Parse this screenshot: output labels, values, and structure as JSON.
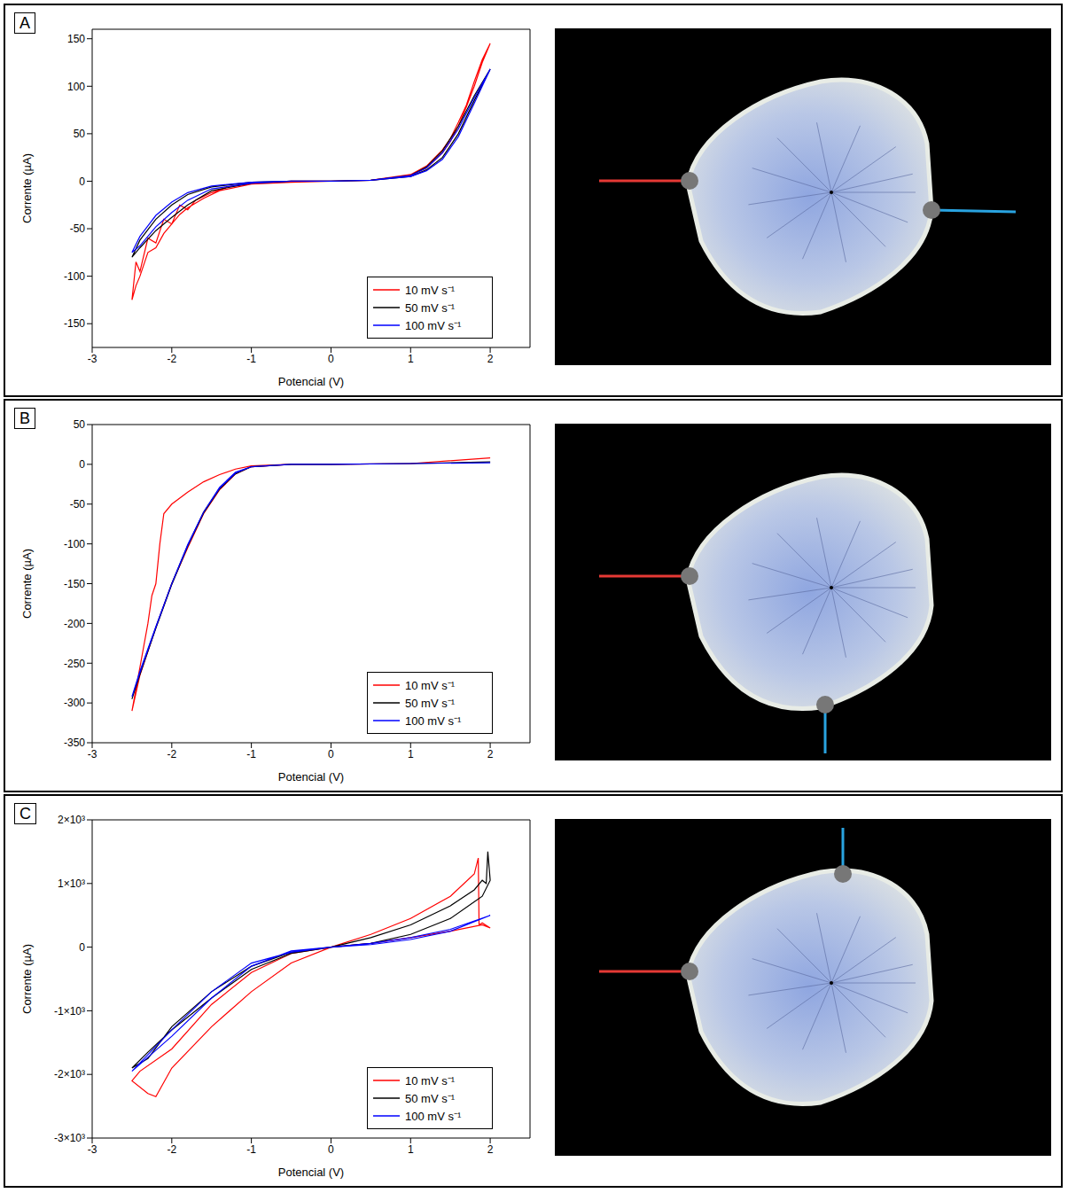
{
  "chart_data": [
    {
      "type": "line",
      "title": "A",
      "x_label": "Potencial (V)",
      "y_label": "Corrente (µA)",
      "xlim": [
        -3,
        2.5
      ],
      "xticks": [
        -3,
        -2,
        -1,
        0,
        1,
        2
      ],
      "ylim": [
        -175,
        160
      ],
      "yticks": [
        -150,
        -100,
        -50,
        0,
        50,
        100,
        150
      ],
      "legend": "lower right",
      "series": [
        {
          "name": "10 mV s⁻¹",
          "color": "#ff0000",
          "x": [
            0,
            0.5,
            1,
            1.2,
            1.4,
            1.5,
            1.6,
            1.7,
            1.8,
            1.9,
            2,
            1.9,
            1.8,
            1.7,
            1.6,
            1.5,
            1.4,
            1.2,
            1,
            0.5,
            0,
            -0.5,
            -1,
            -1.3,
            -1.5,
            -1.7,
            -1.8,
            -1.9,
            -2,
            -2.1,
            -2.2,
            -2.3,
            -2.4,
            -2.45,
            -2.5,
            -2.45,
            -2.4,
            -2.3,
            -2.2,
            -2.1,
            -2,
            -1.9,
            -1.8,
            -1.6,
            -1.4,
            -1,
            -0.5,
            0
          ],
          "values": [
            0,
            1,
            6,
            14,
            30,
            42,
            58,
            78,
            100,
            125,
            145,
            128,
            105,
            80,
            62,
            45,
            33,
            16,
            7,
            1,
            0,
            0,
            -2,
            -6,
            -12,
            -20,
            -30,
            -25,
            -45,
            -40,
            -65,
            -60,
            -95,
            -85,
            -125,
            -110,
            -100,
            -75,
            -70,
            -55,
            -45,
            -35,
            -28,
            -18,
            -10,
            -3,
            -1,
            0
          ]
        },
        {
          "name": "50 mV s⁻¹",
          "color": "#000000",
          "x": [
            0,
            0.5,
            1,
            1.2,
            1.4,
            1.6,
            1.8,
            2,
            1.8,
            1.6,
            1.4,
            1.2,
            1,
            0.5,
            0,
            -0.5,
            -1,
            -1.5,
            -1.8,
            -2,
            -2.2,
            -2.4,
            -2.5,
            -2.4,
            -2.2,
            -2,
            -1.8,
            -1.5,
            -1,
            -0.5,
            0
          ],
          "values": [
            0,
            1,
            5,
            12,
            25,
            50,
            85,
            118,
            90,
            58,
            32,
            15,
            6,
            1,
            0,
            0,
            -1,
            -6,
            -14,
            -25,
            -40,
            -62,
            -80,
            -70,
            -52,
            -38,
            -25,
            -10,
            -2,
            0,
            0
          ]
        },
        {
          "name": "100 mV s⁻¹",
          "color": "#0000ff",
          "x": [
            0,
            0.5,
            1,
            1.2,
            1.4,
            1.6,
            1.8,
            2,
            1.8,
            1.6,
            1.4,
            1.2,
            1,
            0.5,
            0,
            -0.5,
            -1,
            -1.5,
            -1.8,
            -2,
            -2.2,
            -2.4,
            -2.5,
            -2.4,
            -2.2,
            -2,
            -1.8,
            -1.5,
            -1,
            -0.5,
            0
          ],
          "values": [
            0,
            1,
            5,
            11,
            23,
            47,
            82,
            118,
            88,
            55,
            30,
            14,
            6,
            1,
            0,
            0,
            -1,
            -5,
            -12,
            -22,
            -36,
            -58,
            -75,
            -68,
            -48,
            -33,
            -20,
            -8,
            -2,
            0,
            0
          ]
        }
      ]
    },
    {
      "type": "line",
      "title": "B",
      "x_label": "Potencial (V)",
      "y_label": "Corrente (µA)",
      "xlim": [
        -3,
        2.5
      ],
      "xticks": [
        -3,
        -2,
        -1,
        0,
        1,
        2
      ],
      "ylim": [
        -350,
        50
      ],
      "yticks": [
        -350,
        -300,
        -250,
        -200,
        -150,
        -100,
        -50,
        0,
        50
      ],
      "legend": "lower right",
      "series": [
        {
          "name": "10 mV s⁻¹",
          "color": "#ff0000",
          "x": [
            0,
            1,
            2,
            1,
            0,
            -0.5,
            -1,
            -1.2,
            -1.4,
            -1.6,
            -1.8,
            -2,
            -2.1,
            -2.15,
            -2.2,
            -2.25,
            -2.3,
            -2.4,
            -2.5,
            -2.4,
            -2.3,
            -2.2,
            -2,
            -1.8,
            -1.6,
            -1.4,
            -1.2,
            -1,
            -0.5,
            0
          ],
          "values": [
            0,
            1,
            8,
            1,
            0,
            0,
            -2,
            -6,
            -13,
            -22,
            -35,
            -50,
            -62,
            -100,
            -150,
            -165,
            -200,
            -255,
            -310,
            -265,
            -235,
            -205,
            -150,
            -105,
            -62,
            -32,
            -12,
            -3,
            0,
            0
          ]
        },
        {
          "name": "50 mV s⁻¹",
          "color": "#000000",
          "x": [
            0,
            1,
            2,
            1,
            0,
            -0.5,
            -1,
            -1.2,
            -1.4,
            -1.6,
            -1.8,
            -2,
            -2.2,
            -2.4,
            -2.5,
            -2.4,
            -2.2,
            -2,
            -1.8,
            -1.6,
            -1.4,
            -1.2,
            -1,
            -0.5,
            0
          ],
          "values": [
            0,
            1,
            3,
            1,
            0,
            0,
            -3,
            -11,
            -30,
            -60,
            -102,
            -150,
            -205,
            -262,
            -295,
            -264,
            -206,
            -151,
            -103,
            -61,
            -31,
            -12,
            -3,
            0,
            0
          ]
        },
        {
          "name": "100 mV s⁻¹",
          "color": "#0000ff",
          "x": [
            0,
            1,
            2,
            1,
            0,
            -0.5,
            -1,
            -1.2,
            -1.4,
            -1.6,
            -1.8,
            -2,
            -2.2,
            -2.4,
            -2.5,
            -2.4,
            -2.2,
            -2,
            -1.8,
            -1.6,
            -1.4,
            -1.2,
            -1,
            -0.5,
            0
          ],
          "values": [
            0,
            1,
            2,
            1,
            0,
            0,
            -3,
            -10,
            -29,
            -60,
            -101,
            -150,
            -204,
            -260,
            -292,
            -262,
            -205,
            -150,
            -102,
            -60,
            -30,
            -11,
            -3,
            0,
            0
          ]
        }
      ]
    },
    {
      "type": "line",
      "title": "C",
      "x_label": "Potencial (V)",
      "y_label": "Corrente (µA)",
      "xlim": [
        -3,
        2.5
      ],
      "xticks": [
        -3,
        -2,
        -1,
        0,
        1,
        2
      ],
      "ylim": [
        -3000,
        2000
      ],
      "yticks": [
        {
          "value": -3000,
          "label": "-3×10³"
        },
        {
          "value": -2000,
          "label": "-2×10³"
        },
        {
          "value": -1000,
          "label": "-1×10³"
        },
        0,
        {
          "value": 1000,
          "label": "1×10³"
        },
        {
          "value": 2000,
          "label": "2×10³"
        }
      ],
      "legend": "lower right",
      "series": [
        {
          "name": "10 mV s⁻¹",
          "color": "#ff0000",
          "x": [
            0,
            0.5,
            1,
            1.5,
            1.8,
            1.85,
            1.86,
            1.9,
            2,
            1.9,
            1.5,
            1,
            0.5,
            0,
            -0.5,
            -1,
            -1.5,
            -2,
            -2.2,
            -2.3,
            -2.5,
            -2.4,
            -2,
            -1.5,
            -1,
            -0.5,
            0
          ],
          "values": [
            0,
            200,
            450,
            800,
            1150,
            1400,
            350,
            380,
            300,
            350,
            250,
            150,
            60,
            0,
            -250,
            -700,
            -1250,
            -1900,
            -2350,
            -2300,
            -2100,
            -1950,
            -1600,
            -900,
            -400,
            -100,
            0
          ]
        },
        {
          "name": "50 mV s⁻¹",
          "color": "#000000",
          "x": [
            0,
            0.5,
            1,
            1.5,
            1.8,
            1.9,
            1.95,
            1.97,
            2,
            1.9,
            1.5,
            1,
            0.5,
            0,
            -0.5,
            -1,
            -1.5,
            -2,
            -2.3,
            -2.5,
            -2.3,
            -2,
            -1.5,
            -1,
            -0.5,
            0
          ],
          "values": [
            0,
            150,
            350,
            650,
            900,
            1050,
            1000,
            1500,
            1050,
            800,
            450,
            200,
            60,
            0,
            -100,
            -350,
            -800,
            -1300,
            -1650,
            -1900,
            -1750,
            -1250,
            -700,
            -300,
            -80,
            0
          ]
        },
        {
          "name": "100 mV s⁻¹",
          "color": "#0000ff",
          "x": [
            0,
            0.5,
            1,
            1.5,
            2,
            1.5,
            1,
            0.5,
            0,
            -0.5,
            -1,
            -1.5,
            -2,
            -2.5,
            -2,
            -1.5,
            -1,
            -0.5,
            0
          ],
          "values": [
            0,
            60,
            150,
            280,
            500,
            250,
            120,
            40,
            0,
            -80,
            -250,
            -700,
            -1300,
            -1950,
            -1400,
            -800,
            -300,
            -60,
            0
          ]
        }
      ]
    }
  ]
}
